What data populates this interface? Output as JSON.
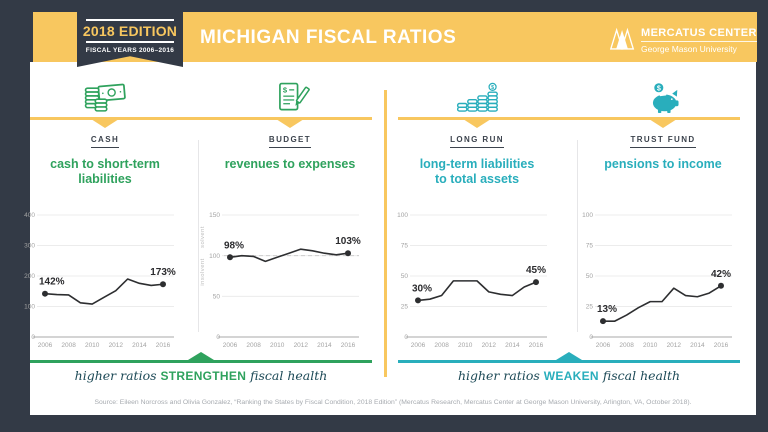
{
  "colors": {
    "navy": "#333a46",
    "gold": "#f8c75f",
    "green": "#2fa25d",
    "teal": "#29aebc",
    "dark_teal_text": "#1d4a57",
    "chart_line": "#2d2e30",
    "axis_text": "#a3a3a3"
  },
  "header": {
    "edition": "2018 EDITION",
    "fiscal_years": "FISCAL YEARS 2006–2016",
    "title": "MICHIGAN FISCAL RATIOS",
    "logo_name": "MERCATUS CENTER",
    "logo_sub": "George Mason University"
  },
  "columns": [
    {
      "icon": "cash-coins-icon",
      "category": "CASH",
      "subtitle": "cash to short-term\nliabilities",
      "accent": "#2fa25d"
    },
    {
      "icon": "budget-document-icon",
      "category": "BUDGET",
      "subtitle": "revenues to expenses",
      "accent": "#2fa25d"
    },
    {
      "icon": "coin-stacks-icon",
      "category": "LONG RUN",
      "subtitle": "long-term liabilities\nto total assets",
      "accent": "#29aebc"
    },
    {
      "icon": "piggy-bank-icon",
      "category": "TRUST FUND",
      "subtitle": "pensions to income",
      "accent": "#29aebc"
    }
  ],
  "chart_data": [
    {
      "type": "line",
      "title": "cash to short-term liabilities",
      "unit": "%",
      "x": [
        2006,
        2007,
        2008,
        2009,
        2010,
        2011,
        2012,
        2013,
        2014,
        2015,
        2016
      ],
      "values": [
        142,
        139,
        138,
        112,
        108,
        130,
        152,
        190,
        176,
        169,
        173
      ],
      "xticks": [
        2006,
        2008,
        2010,
        2012,
        2014,
        2016
      ],
      "yticks": [
        0,
        100,
        200,
        300,
        400
      ],
      "ylim": [
        0,
        400
      ],
      "first_label": "142%",
      "last_label": "173%",
      "line_color": "#2d2e30",
      "grid": true,
      "legend": "none"
    },
    {
      "type": "line",
      "title": "revenues to expenses",
      "unit": "%",
      "x": [
        2006,
        2007,
        2008,
        2009,
        2010,
        2011,
        2012,
        2013,
        2014,
        2015,
        2016
      ],
      "values": [
        98,
        100,
        99,
        93,
        98,
        103,
        108,
        106,
        103,
        101,
        103
      ],
      "xticks": [
        2006,
        2008,
        2010,
        2012,
        2014,
        2016
      ],
      "yticks": [
        0,
        50,
        100,
        150
      ],
      "ylim": [
        0,
        150
      ],
      "refline": 100,
      "annotations": [
        {
          "text": "solvent",
          "value": 123
        },
        {
          "text": "insolvent",
          "value": 80
        }
      ],
      "first_label": "98%",
      "last_label": "103%",
      "line_color": "#2d2e30",
      "grid": true,
      "legend": "none"
    },
    {
      "type": "line",
      "title": "long-term liabilities to total assets",
      "unit": "%",
      "x": [
        2006,
        2007,
        2008,
        2009,
        2010,
        2011,
        2012,
        2013,
        2014,
        2015,
        2016
      ],
      "values": [
        30,
        31,
        34,
        46,
        46,
        46,
        37,
        35,
        34,
        41,
        45
      ],
      "xticks": [
        2006,
        2008,
        2010,
        2012,
        2014,
        2016
      ],
      "yticks": [
        0,
        25,
        50,
        75,
        100
      ],
      "ylim": [
        0,
        100
      ],
      "first_label": "30%",
      "last_label": "45%",
      "line_color": "#2d2e30",
      "grid": true,
      "legend": "none"
    },
    {
      "type": "line",
      "title": "pensions to income",
      "unit": "%",
      "x": [
        2006,
        2007,
        2008,
        2009,
        2010,
        2011,
        2012,
        2013,
        2014,
        2015,
        2016
      ],
      "values": [
        13,
        13,
        18,
        24,
        29,
        29,
        40,
        34,
        33,
        36,
        42
      ],
      "xticks": [
        2006,
        2008,
        2010,
        2012,
        2014,
        2016
      ],
      "yticks": [
        0,
        25,
        50,
        75,
        100
      ],
      "ylim": [
        0,
        100
      ],
      "first_label": "13%",
      "last_label": "42%",
      "line_color": "#2d2e30",
      "grid": true,
      "legend": "none"
    }
  ],
  "banners": [
    {
      "pre": "higher ratios",
      "keyword": "STRENGTHEN",
      "post": "fiscal health",
      "color": "#2fa25d"
    },
    {
      "pre": "higher ratios",
      "keyword": "WEAKEN",
      "post": "fiscal health",
      "color": "#29aebc"
    }
  ],
  "source": "Source: Eileen Norcross and Olivia Gonzalez, “Ranking the States by Fiscal Condition, 2018 Edition” (Mercatus Research, Mercatus Center at George Mason University, Arlington, VA, October 2018)."
}
